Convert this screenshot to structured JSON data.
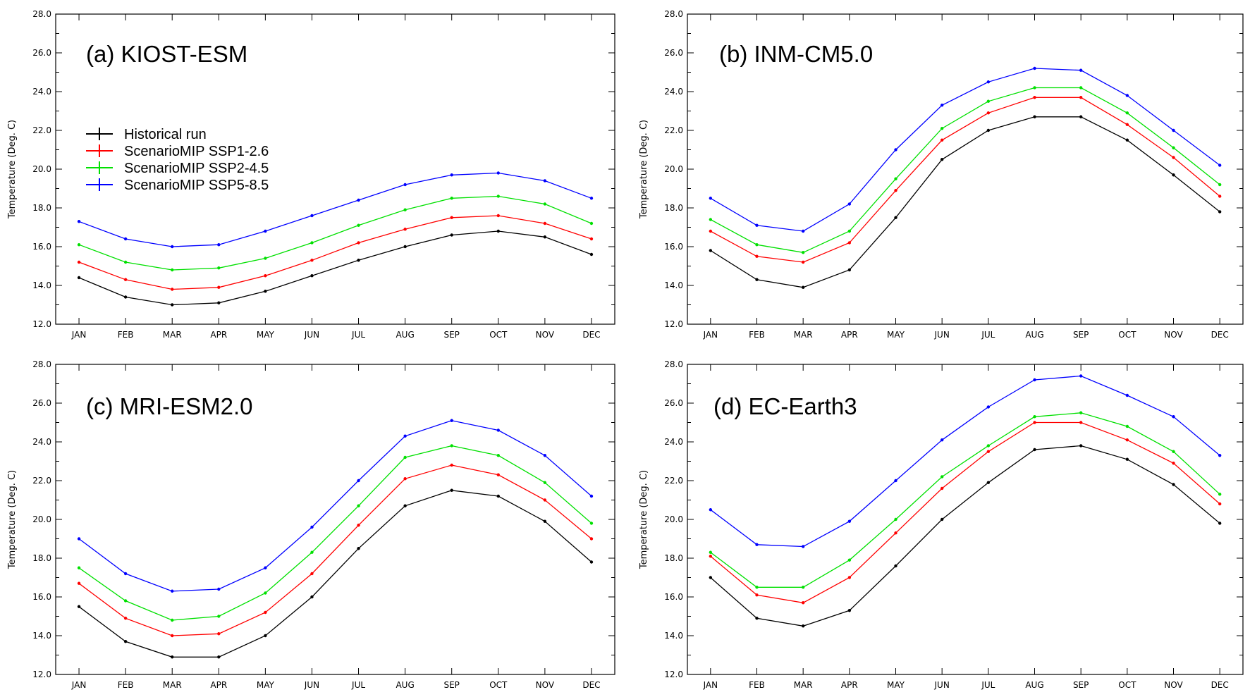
{
  "chart_data": [
    {
      "type": "line",
      "title": "(a) KIOST-ESM",
      "xlabel": "",
      "ylabel": "Temperature (Deg. C)",
      "categories": [
        "JAN",
        "FEB",
        "MAR",
        "APR",
        "MAY",
        "JUN",
        "JUL",
        "AUG",
        "SEP",
        "OCT",
        "NOV",
        "DEC"
      ],
      "ylim": [
        12.0,
        28.0
      ],
      "yticks": [
        "12.0",
        "14.0",
        "16.0",
        "18.0",
        "20.0",
        "22.0",
        "24.0",
        "26.0",
        "28.0"
      ],
      "legend": "top-left",
      "series": [
        {
          "name": "Historical run",
          "color": "#000000",
          "values": [
            14.4,
            13.4,
            13.0,
            13.1,
            13.7,
            14.5,
            15.3,
            16.0,
            16.6,
            16.8,
            16.5,
            15.6
          ]
        },
        {
          "name": "ScenarioMIP SSP1-2.6",
          "color": "#ff0000",
          "values": [
            15.2,
            14.3,
            13.8,
            13.9,
            14.5,
            15.3,
            16.2,
            16.9,
            17.5,
            17.6,
            17.2,
            16.4
          ]
        },
        {
          "name": "ScenarioMIP SSP2-4.5",
          "color": "#00e000",
          "values": [
            16.1,
            15.2,
            14.8,
            14.9,
            15.4,
            16.2,
            17.1,
            17.9,
            18.5,
            18.6,
            18.2,
            17.2
          ]
        },
        {
          "name": "ScenarioMIP SSP5-8.5",
          "color": "#0000ff",
          "values": [
            17.3,
            16.4,
            16.0,
            16.1,
            16.8,
            17.6,
            18.4,
            19.2,
            19.7,
            19.8,
            19.4,
            18.5
          ]
        }
      ]
    },
    {
      "type": "line",
      "title": "(b) INM-CM5.0",
      "xlabel": "",
      "ylabel": "Temperature (Deg. C)",
      "categories": [
        "JAN",
        "FEB",
        "MAR",
        "APR",
        "MAY",
        "JUN",
        "JUL",
        "AUG",
        "SEP",
        "OCT",
        "NOV",
        "DEC"
      ],
      "ylim": [
        12.0,
        28.0
      ],
      "yticks": [
        "12.0",
        "14.0",
        "16.0",
        "18.0",
        "20.0",
        "22.0",
        "24.0",
        "26.0",
        "28.0"
      ],
      "series": [
        {
          "color": "#000000",
          "values": [
            15.8,
            14.3,
            13.9,
            14.8,
            17.5,
            20.5,
            22.0,
            22.7,
            22.7,
            21.5,
            19.7,
            17.8
          ]
        },
        {
          "color": "#ff0000",
          "values": [
            16.8,
            15.5,
            15.2,
            16.2,
            18.9,
            21.5,
            22.9,
            23.7,
            23.7,
            22.3,
            20.6,
            18.6
          ]
        },
        {
          "color": "#00e000",
          "values": [
            17.4,
            16.1,
            15.7,
            16.8,
            19.5,
            22.1,
            23.5,
            24.2,
            24.2,
            22.9,
            21.1,
            19.2
          ]
        },
        {
          "color": "#0000ff",
          "values": [
            18.5,
            17.1,
            16.8,
            18.2,
            21.0,
            23.3,
            24.5,
            25.2,
            25.1,
            23.8,
            22.0,
            20.2
          ]
        }
      ]
    },
    {
      "type": "line",
      "title": "(c) MRI-ESM2.0",
      "xlabel": "",
      "ylabel": "Temperature (Deg. C)",
      "categories": [
        "JAN",
        "FEB",
        "MAR",
        "APR",
        "MAY",
        "JUN",
        "JUL",
        "AUG",
        "SEP",
        "OCT",
        "NOV",
        "DEC"
      ],
      "ylim": [
        12.0,
        28.0
      ],
      "yticks": [
        "12.0",
        "14.0",
        "16.0",
        "18.0",
        "20.0",
        "22.0",
        "24.0",
        "26.0",
        "28.0"
      ],
      "series": [
        {
          "color": "#000000",
          "values": [
            15.5,
            13.7,
            12.9,
            12.9,
            14.0,
            16.0,
            18.5,
            20.7,
            21.5,
            21.2,
            19.9,
            17.8
          ]
        },
        {
          "color": "#ff0000",
          "values": [
            16.7,
            14.9,
            14.0,
            14.1,
            15.2,
            17.2,
            19.7,
            22.1,
            22.8,
            22.3,
            21.0,
            19.0
          ]
        },
        {
          "color": "#00e000",
          "values": [
            17.5,
            15.8,
            14.8,
            15.0,
            16.2,
            18.3,
            20.7,
            23.2,
            23.8,
            23.3,
            21.9,
            19.8
          ]
        },
        {
          "color": "#0000ff",
          "values": [
            19.0,
            17.2,
            16.3,
            16.4,
            17.5,
            19.6,
            22.0,
            24.3,
            25.1,
            24.6,
            23.3,
            21.2
          ]
        }
      ]
    },
    {
      "type": "line",
      "title": "(d) EC-Earth3",
      "xlabel": "",
      "ylabel": "Temperature (Deg. C)",
      "categories": [
        "JAN",
        "FEB",
        "MAR",
        "APR",
        "MAY",
        "JUN",
        "JUL",
        "AUG",
        "SEP",
        "OCT",
        "NOV",
        "DEC"
      ],
      "ylim": [
        12.0,
        28.0
      ],
      "yticks": [
        "12.0",
        "14.0",
        "16.0",
        "18.0",
        "20.0",
        "22.0",
        "24.0",
        "26.0",
        "28.0"
      ],
      "series": [
        {
          "color": "#000000",
          "values": [
            17.0,
            14.9,
            14.5,
            15.3,
            17.6,
            20.0,
            21.9,
            23.6,
            23.8,
            23.1,
            21.8,
            19.8
          ]
        },
        {
          "color": "#ff0000",
          "values": [
            18.1,
            16.1,
            15.7,
            17.0,
            19.3,
            21.6,
            23.5,
            25.0,
            25.0,
            24.1,
            22.9,
            20.8
          ]
        },
        {
          "color": "#00e000",
          "values": [
            18.3,
            16.5,
            16.5,
            17.9,
            20.0,
            22.2,
            23.8,
            25.3,
            25.5,
            24.8,
            23.5,
            21.3
          ]
        },
        {
          "color": "#0000ff",
          "values": [
            20.5,
            18.7,
            18.6,
            19.9,
            22.0,
            24.1,
            25.8,
            27.2,
            27.4,
            26.4,
            25.3,
            23.3
          ]
        }
      ]
    }
  ]
}
